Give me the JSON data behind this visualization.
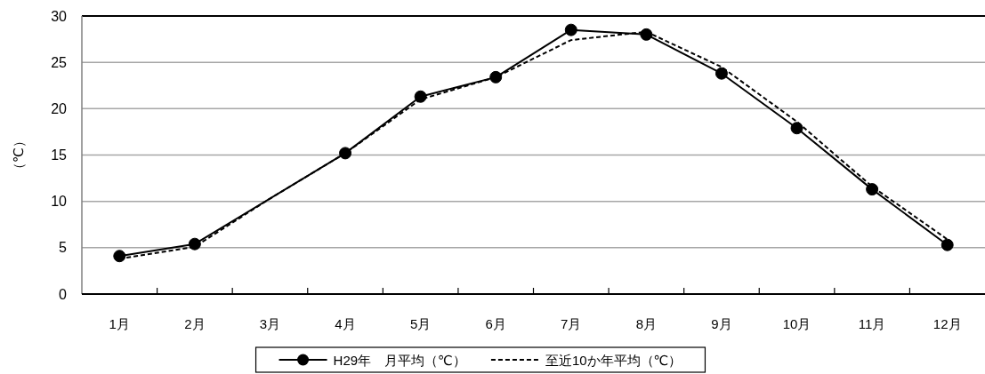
{
  "chart_data": {
    "type": "line",
    "categories": [
      "1月",
      "2月",
      "3月",
      "4月",
      "5月",
      "6月",
      "7月",
      "8月",
      "9月",
      "10月",
      "11月",
      "12月"
    ],
    "ylabel": "（℃）",
    "ylim": [
      0,
      30
    ],
    "yticks": [
      0,
      5,
      10,
      15,
      20,
      25,
      30
    ],
    "grid": "y",
    "legend": "bottom",
    "series": [
      {
        "name": "H29年　月平均（℃）",
        "color": "#000000",
        "marker": "circle",
        "line_style": "solid",
        "values": [
          4.1,
          5.4,
          null,
          15.2,
          21.3,
          23.4,
          28.5,
          28.0,
          23.8,
          17.9,
          11.3,
          5.3
        ]
      },
      {
        "name": "至近10か年平均（℃）",
        "color": "#000000",
        "marker": "none",
        "line_style": "dashed",
        "values": [
          3.8,
          5.1,
          10.3,
          15.2,
          21.0,
          23.4,
          27.4,
          28.3,
          24.5,
          18.6,
          11.6,
          5.9
        ]
      }
    ]
  }
}
